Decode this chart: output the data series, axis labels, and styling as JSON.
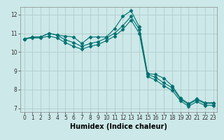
{
  "title": "",
  "xlabel": "Humidex (Indice chaleur)",
  "ylabel": "",
  "background_color": "#cce8e8",
  "grid_color": "#b0cccc",
  "line_color": "#007070",
  "xlim": [
    -0.5,
    23.5
  ],
  "ylim": [
    6.8,
    12.4
  ],
  "xticks": [
    0,
    1,
    2,
    3,
    4,
    5,
    6,
    7,
    8,
    9,
    10,
    11,
    12,
    13,
    14,
    15,
    16,
    17,
    18,
    19,
    20,
    21,
    22,
    23
  ],
  "yticks": [
    7,
    8,
    9,
    10,
    11,
    12
  ],
  "series": [
    [
      10.7,
      10.8,
      10.8,
      11.0,
      10.9,
      10.85,
      10.8,
      10.45,
      10.8,
      10.8,
      10.8,
      11.25,
      11.9,
      12.2,
      11.35,
      8.85,
      8.8,
      8.6,
      8.2,
      7.55,
      7.25,
      7.5,
      7.3,
      7.3
    ],
    [
      10.7,
      10.8,
      10.8,
      11.0,
      10.9,
      10.65,
      10.5,
      10.3,
      10.45,
      10.55,
      10.75,
      11.0,
      11.4,
      11.9,
      11.2,
      8.8,
      8.65,
      8.35,
      8.1,
      7.5,
      7.2,
      7.45,
      7.25,
      7.25
    ],
    [
      10.7,
      10.75,
      10.75,
      10.85,
      10.75,
      10.5,
      10.3,
      10.15,
      10.3,
      10.4,
      10.6,
      10.85,
      11.2,
      11.7,
      11.0,
      8.7,
      8.5,
      8.2,
      7.95,
      7.4,
      7.1,
      7.35,
      7.15,
      7.15
    ]
  ],
  "marker": "D",
  "markersize": 2.5,
  "linewidth": 0.8,
  "tick_fontsize": 5.5,
  "xlabel_fontsize": 7
}
